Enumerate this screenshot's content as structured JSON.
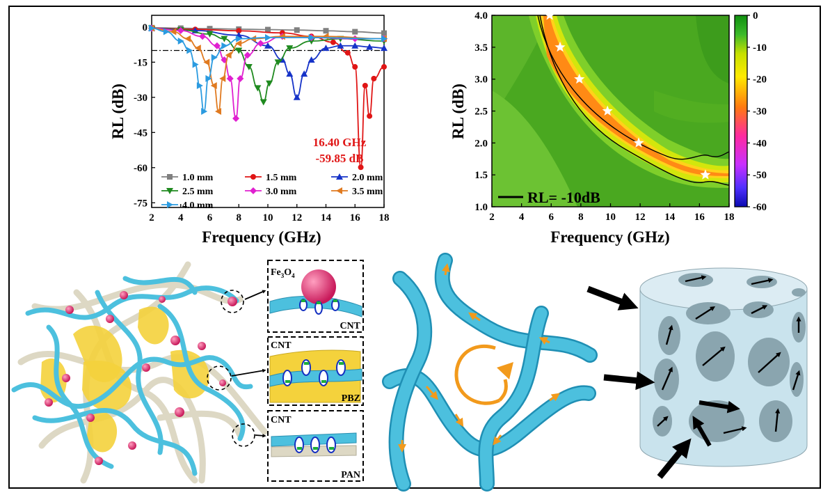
{
  "chart_data": [
    {
      "type": "line",
      "xlabel": "Frequency (GHz)",
      "ylabel": "RL (dB)",
      "xlim": [
        2,
        18
      ],
      "ylim": [
        -77,
        5
      ],
      "xticks": [
        "2",
        "4",
        "6",
        "8",
        "10",
        "12",
        "14",
        "16",
        "18"
      ],
      "yticks": [
        "0",
        "-15",
        "-30",
        "-45",
        "-60",
        "-75"
      ],
      "reference_line": -10,
      "annotation": {
        "line1": "16.40 GHz",
        "line2": "-59.85 dB",
        "color": "#e01515"
      },
      "series": [
        {
          "name": "1.0 mm",
          "color": "#808080",
          "marker": "square",
          "x": [
            2,
            4,
            6,
            8,
            10,
            12,
            14,
            16,
            18
          ],
          "y": [
            -0.3,
            -0.5,
            -0.7,
            -0.9,
            -1.1,
            -1.3,
            -1.6,
            -2.0,
            -2.6
          ]
        },
        {
          "name": "1.5 mm",
          "color": "#e01515",
          "marker": "circle",
          "x": [
            2,
            5,
            8,
            11,
            13,
            14.5,
            15.5,
            16.0,
            16.4,
            16.7,
            17.0,
            17.3,
            18
          ],
          "y": [
            -0.5,
            -1,
            -1.6,
            -2.5,
            -4,
            -6.5,
            -11,
            -17,
            -59.85,
            -25,
            -38,
            -22,
            -17
          ]
        },
        {
          "name": "2.0 mm",
          "color": "#1633c8",
          "marker": "triangle-up",
          "x": [
            2,
            5,
            8,
            10,
            11,
            11.5,
            12,
            12.5,
            13,
            14,
            15,
            16,
            17,
            18
          ],
          "y": [
            -0.5,
            -1.5,
            -3.5,
            -8,
            -14,
            -20,
            -30,
            -20,
            -14,
            -9,
            -8,
            -8,
            -8.5,
            -9
          ]
        },
        {
          "name": "2.5 mm",
          "color": "#1f8a1f",
          "marker": "triangle-down",
          "x": [
            2,
            4,
            6,
            7,
            8,
            8.7,
            9.3,
            9.7,
            10.1,
            10.7,
            11.5,
            13,
            15,
            18
          ],
          "y": [
            -0.5,
            -1.2,
            -3,
            -5,
            -10,
            -17,
            -26,
            -32,
            -24,
            -15,
            -9,
            -6,
            -5,
            -6
          ]
        },
        {
          "name": "3.0 mm",
          "color": "#e020d0",
          "marker": "diamond",
          "x": [
            2,
            4,
            5.5,
            6.5,
            7,
            7.4,
            7.8,
            8.1,
            8.6,
            9.5,
            11,
            13,
            16,
            18
          ],
          "y": [
            -0.5,
            -1.5,
            -4,
            -8,
            -14,
            -22,
            -39,
            -22,
            -12,
            -7,
            -4,
            -4.5,
            -5,
            -5
          ]
        },
        {
          "name": "3.5 mm",
          "color": "#e07a20",
          "marker": "triangle-left",
          "x": [
            2,
            3.5,
            4.5,
            5.2,
            5.8,
            6.3,
            6.6,
            6.9,
            7.3,
            8,
            9,
            11,
            14,
            18
          ],
          "y": [
            -0.5,
            -2,
            -5,
            -9,
            -15,
            -25,
            -36,
            -22,
            -12,
            -7,
            -5,
            -4,
            -4,
            -5
          ]
        },
        {
          "name": "4.0 mm",
          "color": "#2b9be0",
          "marker": "triangle-right",
          "x": [
            2,
            3,
            4,
            4.6,
            5,
            5.3,
            5.6,
            5.9,
            6.3,
            7,
            8,
            10,
            13,
            18
          ],
          "y": [
            -0.5,
            -2,
            -6,
            -10,
            -16,
            -25,
            -36,
            -22,
            -13,
            -8,
            -5,
            -4.5,
            -4.5,
            -5
          ]
        }
      ]
    },
    {
      "type": "heatmap",
      "xlabel": "Frequency (GHz)",
      "ylabel": "RL (dB)",
      "xlim": [
        2,
        18
      ],
      "ylim": [
        1.0,
        4.0
      ],
      "xticks": [
        "2",
        "4",
        "6",
        "8",
        "10",
        "12",
        "14",
        "16",
        "18"
      ],
      "yticks": [
        "1.0",
        "1.5",
        "2.0",
        "2.5",
        "3.0",
        "3.5",
        "4.0"
      ],
      "colorbar": {
        "ticks": [
          "0",
          "-10",
          "-20",
          "-30",
          "-40",
          "-50",
          "-60"
        ],
        "range": [
          -60,
          0
        ]
      },
      "legend_label": "RL= -10dB",
      "valley_points": [
        [
          5.9,
          4.0
        ],
        [
          6.6,
          3.5
        ],
        [
          7.9,
          3.0
        ],
        [
          9.8,
          2.5
        ],
        [
          11.9,
          2.0
        ],
        [
          16.4,
          1.5
        ]
      ]
    }
  ],
  "labels": {
    "fe3o4_main": "Fe",
    "fe3o4_sub1": "3",
    "fe3o4_mid": "O",
    "fe3o4_sub2": "4",
    "inset1_bottom": "CNT",
    "inset2_top": "CNT",
    "inset2_bottom": "PBZ",
    "inset3_top": "CNT",
    "inset3_bottom": "PAN"
  }
}
